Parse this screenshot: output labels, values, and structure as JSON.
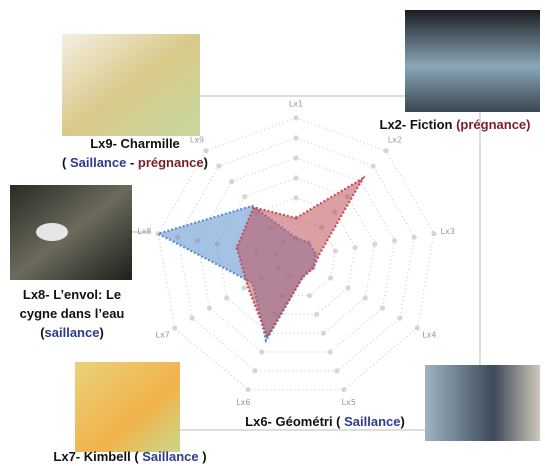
{
  "chart_data": {
    "type": "radar",
    "categories": [
      "Lx1",
      "Lx2",
      "Lx3",
      "Lx4",
      "Lx5",
      "Lx6",
      "Lx7",
      "Lx8",
      "Lx9"
    ],
    "rlim": [
      0,
      7
    ],
    "rticks": [
      1,
      2,
      3,
      4,
      5,
      6,
      7
    ],
    "grid": true,
    "series": [
      {
        "color": "#5b8fd0",
        "values": [
          1,
          1,
          1,
          1,
          1,
          4.4,
          2.5,
          7,
          3.4
        ]
      },
      {
        "color": "#c0505a",
        "values": [
          2,
          5.2,
          1.2,
          1,
          1,
          4.2,
          2.8,
          3,
          3.3
        ]
      }
    ],
    "annotations": [
      {
        "lines": [
          [
            {
              "text": "Lx9- Charmille",
              "color": "#111111"
            }
          ],
          [
            {
              "text": "( ",
              "color": "#111111"
            },
            {
              "text": "Saillance",
              "color": "#2e3b8c"
            },
            {
              "text": " - ",
              "color": "#111111"
            },
            {
              "text": "prégnance",
              "color": "#7a1f2a"
            },
            {
              "text": ")",
              "color": "#111111"
            }
          ]
        ]
      },
      {
        "lines": [
          [
            {
              "text": "Lx2- Fiction ",
              "color": "#111111"
            },
            {
              "text": "(prégnance)",
              "color": "#7a1f2a"
            }
          ]
        ]
      },
      {
        "lines": [
          [
            {
              "text": "Lx8- L’envol: Le",
              "color": "#111111"
            }
          ],
          [
            {
              "text": "cygne dans l’eau",
              "color": "#111111"
            }
          ],
          [
            {
              "text": "(",
              "color": "#111111"
            },
            {
              "text": "saillance",
              "color": "#2e3b8c"
            },
            {
              "text": ")",
              "color": "#111111"
            }
          ]
        ]
      },
      {
        "lines": [
          [
            {
              "text": "Lx6- Géométri ( ",
              "color": "#111111"
            },
            {
              "text": "Saillance",
              "color": "#2e3b8c"
            },
            {
              "text": ")",
              "color": "#111111"
            }
          ]
        ]
      },
      {
        "lines": [
          [
            {
              "text": "Lx7- Kimbell ( ",
              "color": "#111111"
            },
            {
              "text": "Saillance",
              "color": "#2e3b8c"
            },
            {
              "text": " )",
              "color": "#111111"
            }
          ]
        ]
      }
    ]
  }
}
